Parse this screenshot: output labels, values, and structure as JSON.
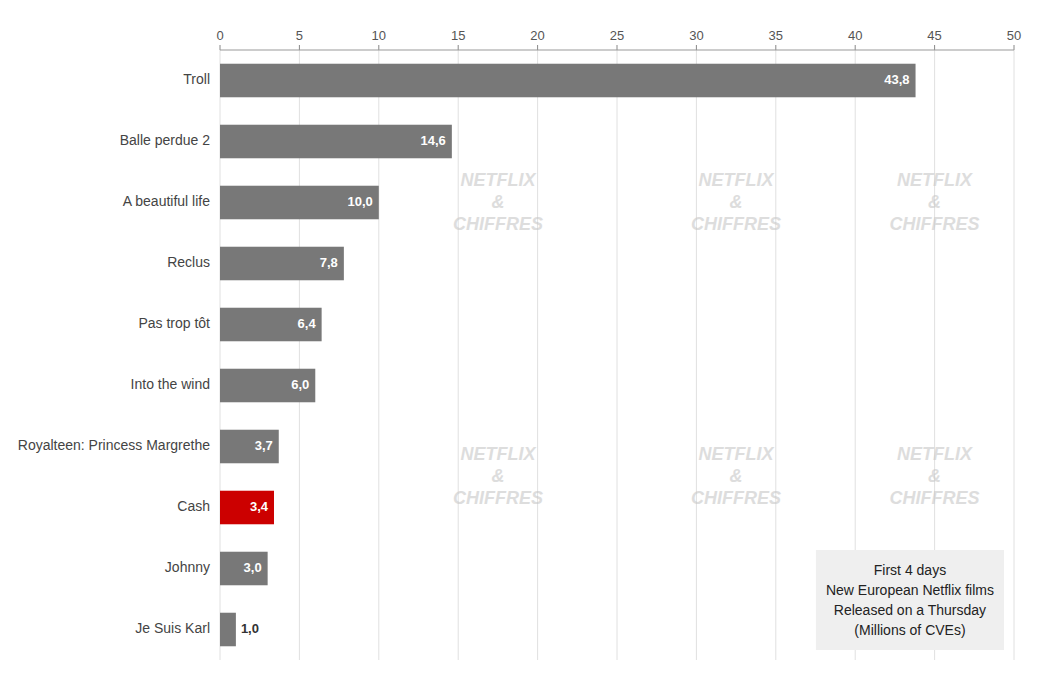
{
  "chart_data": {
    "type": "bar",
    "orientation": "horizontal",
    "categories": [
      "Troll",
      "Balle perdue 2",
      "A beautiful life",
      "Reclus",
      "Pas trop tôt",
      "Into the wind",
      "Royalteen: Princess Margrethe",
      "Cash",
      "Johnny",
      "Je Suis Karl"
    ],
    "values": [
      43.8,
      14.6,
      10.0,
      7.8,
      6.4,
      6.0,
      3.7,
      3.4,
      3.0,
      1.0
    ],
    "value_labels": [
      "43,8",
      "14,6",
      "10,0",
      "7,8",
      "6,4",
      "6,0",
      "3,7",
      "3,4",
      "3,0",
      "1,0"
    ],
    "data_labels": true,
    "colors": [
      "#787878",
      "#787878",
      "#787878",
      "#787878",
      "#787878",
      "#787878",
      "#787878",
      "#cc0000",
      "#787878",
      "#787878"
    ],
    "xlim": [
      0,
      50
    ],
    "xticks": [
      0,
      5,
      10,
      15,
      20,
      25,
      30,
      35,
      40,
      45,
      50
    ],
    "grid": true,
    "annotations": [
      "First 4 days\nNew European Netflix films\nReleased on a Thursday\n(Millions of CVEs)",
      "NETFLIX\n&\nCHIFFRES"
    ]
  }
}
